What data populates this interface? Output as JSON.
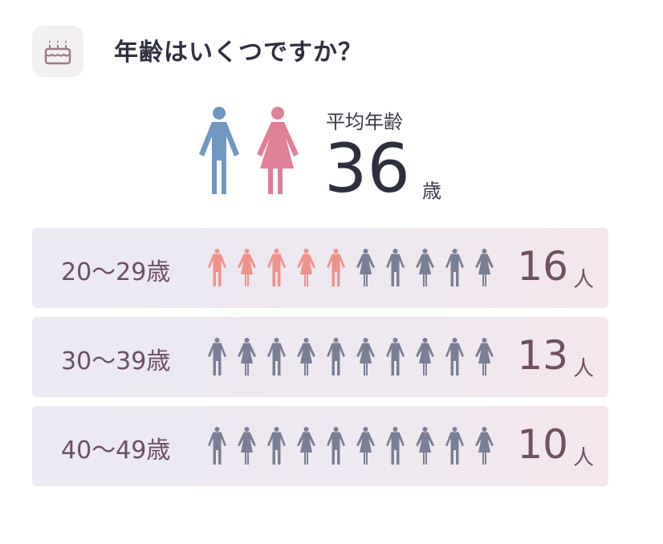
{
  "header": {
    "icon": "birthday-cake-icon",
    "title": "年齢はいくつですか？"
  },
  "summary": {
    "label": "平均年齢",
    "value": "36",
    "unit": "歳",
    "male_color": "#6f97c0",
    "female_color": "#e07f98"
  },
  "colors": {
    "highlight": "#f0928c",
    "neutral": "#7b7f95",
    "row_text": "#6e5060"
  },
  "rows": [
    {
      "label": "20〜29歳",
      "count": "16",
      "unit": "人",
      "highlighted": 5
    },
    {
      "label": "30〜39歳",
      "count": "13",
      "unit": "人",
      "highlighted": 0
    },
    {
      "label": "40〜49歳",
      "count": "10",
      "unit": "人",
      "highlighted": 0
    }
  ]
}
